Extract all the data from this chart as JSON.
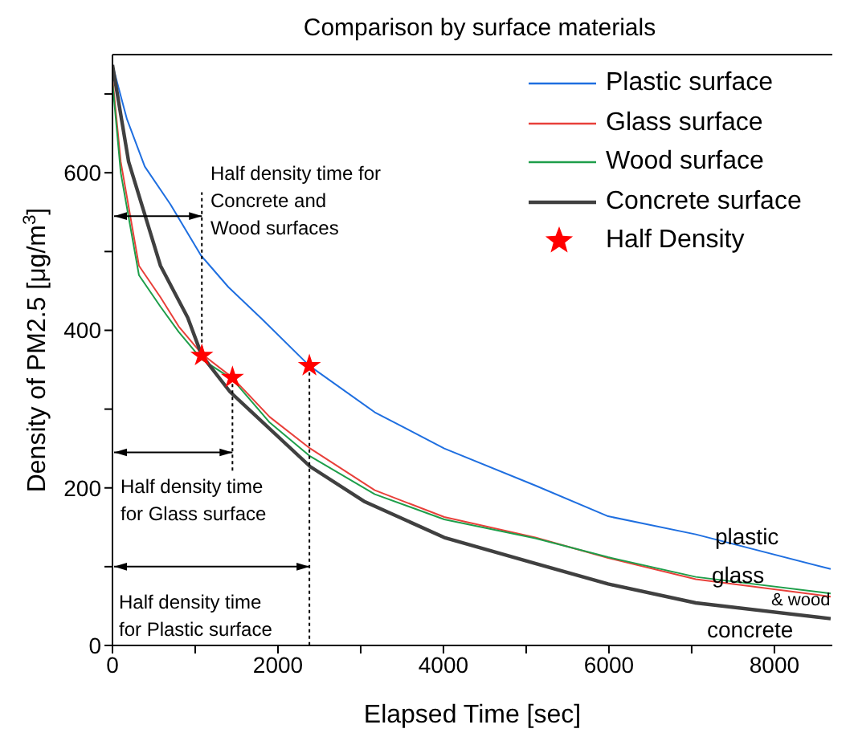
{
  "chart_data": {
    "type": "line",
    "title": "Comparison by surface materials",
    "xlabel": "Elapsed Time [sec]",
    "ylabel": "Density of PM2.5 [μg/m$^{3}$]",
    "xlim": [
      0,
      8700
    ],
    "xticks": [
      0,
      {
        "value": 1000,
        "label": null
      },
      2000,
      {
        "value": 3000,
        "label": null
      },
      4000,
      {
        "value": 5000,
        "label": null
      },
      6000,
      {
        "value": 7000,
        "label": null
      },
      8000
    ],
    "ylim": [
      0,
      750
    ],
    "yticks": [
      0,
      {
        "value": 100,
        "label": null
      },
      200,
      {
        "value": 300,
        "label": null
      },
      400,
      {
        "value": 500,
        "label": null
      },
      600,
      {
        "value": 700,
        "label": null
      }
    ],
    "legend": "top right",
    "grid": false,
    "series": [
      {
        "name": "Plastic surface",
        "color": "#1f6fe0",
        "x": [
          0,
          175,
          390,
          700,
          1070,
          1400,
          1800,
          2380,
          3170,
          4010,
          5110,
          5990,
          7050,
          8680
        ],
        "values": [
          737,
          668,
          608,
          560,
          495,
          455,
          415,
          355,
          296,
          250,
          203,
          164,
          141,
          97
        ]
      },
      {
        "name": "Glass surface",
        "color": "#e8403a",
        "x": [
          0,
          100,
          320,
          580,
          800,
          1080,
          1450,
          1900,
          2390,
          3170,
          4010,
          5110,
          5990,
          7050,
          8680
        ],
        "values": [
          720,
          614,
          482,
          442,
          405,
          370,
          340,
          290,
          250,
          197,
          163,
          137,
          111,
          84,
          62
        ]
      },
      {
        "name": "Wood surface",
        "color": "#1e9e4a",
        "x": [
          0,
          100,
          320,
          580,
          800,
          1080,
          1450,
          1900,
          2390,
          3170,
          4010,
          5110,
          5990,
          7050,
          8680
        ],
        "values": [
          715,
          600,
          470,
          430,
          398,
          363,
          338,
          283,
          240,
          192,
          160,
          136,
          112,
          87,
          66
        ]
      },
      {
        "name": "Concrete surface",
        "color": "#404040",
        "x": [
          0,
          195,
          580,
          910,
          1080,
          1420,
          2390,
          3040,
          4010,
          5110,
          5990,
          7050,
          8680
        ],
        "values": [
          737,
          614,
          482,
          416,
          368,
          322,
          227,
          183,
          137,
          104,
          78,
          54,
          34
        ]
      },
      {
        "name": "Half Density",
        "type": "scatter",
        "marker": "star",
        "color": "#ff0000",
        "x": [
          1080,
          1450,
          2380
        ],
        "values": [
          368,
          340,
          355
        ]
      }
    ],
    "ref_lines": [
      {
        "axis": "x",
        "value": 1080,
        "line_style": "dotted"
      },
      {
        "axis": "x",
        "value": 1450,
        "line_style": "dotted"
      },
      {
        "axis": "x",
        "value": 2380,
        "line_style": "dotted"
      }
    ],
    "annotations": [
      {
        "text": "Half density time for\nConcrete and\nWood surfaces",
        "x": 1080,
        "y": 545
      },
      {
        "text": "Half density time\nfor Glass surface",
        "x": 1450,
        "y": 245
      },
      {
        "text": "Half density time\nfor Plastic surface",
        "x": 2380,
        "y": 100
      },
      "plastic",
      "glass",
      "& wood",
      "concrete"
    ]
  }
}
